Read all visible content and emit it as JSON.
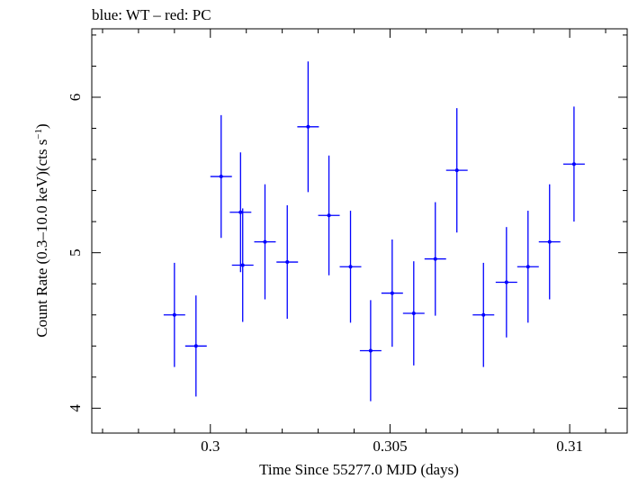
{
  "chart_data": {
    "type": "scatter",
    "title": "blue: WT – red: PC",
    "xlabel": "Time Since 55277.0 MJD (days)",
    "ylabel_main": "Count Rate (0.3–10.0 keV)(cts s",
    "ylabel_sup": "−1",
    "ylabel_close": ")",
    "xlim": [
      0.2967,
      0.3116
    ],
    "ylim": [
      3.84,
      6.44
    ],
    "xticks": [
      {
        "value": 0.3,
        "label": "0.3"
      },
      {
        "value": 0.305,
        "label": "0.305"
      },
      {
        "value": 0.31,
        "label": "0.31"
      }
    ],
    "yticks": [
      {
        "value": 4,
        "label": "4"
      },
      {
        "value": 5,
        "label": "5"
      },
      {
        "value": 6,
        "label": "6"
      }
    ],
    "grid": false,
    "legend": "none",
    "series": [
      {
        "color": "#0000ff",
        "points": [
          {
            "x": 0.30084,
            "xerr": 0.0003,
            "y": 5.26,
            "yerr": 0.385
          },
          {
            "x": 0.299,
            "xerr": 0.0003,
            "y": 4.6,
            "yerr": 0.335
          },
          {
            "x": 0.2996,
            "xerr": 0.0003,
            "y": 4.4,
            "yerr": 0.325
          },
          {
            "x": 0.3003,
            "xerr": 0.0003,
            "y": 5.49,
            "yerr": 0.395
          },
          {
            "x": 0.3009,
            "xerr": 0.0003,
            "y": 4.92,
            "yerr": 0.365
          },
          {
            "x": 0.30152,
            "xerr": 0.0003,
            "y": 5.07,
            "yerr": 0.37
          },
          {
            "x": 0.30214,
            "xerr": 0.0003,
            "y": 4.94,
            "yerr": 0.365
          },
          {
            "x": 0.30272,
            "xerr": 0.0003,
            "y": 5.81,
            "yerr": 0.42
          },
          {
            "x": 0.3033,
            "xerr": 0.0003,
            "y": 5.24,
            "yerr": 0.385
          },
          {
            "x": 0.3039,
            "xerr": 0.0003,
            "y": 4.91,
            "yerr": 0.36
          },
          {
            "x": 0.30446,
            "xerr": 0.0003,
            "y": 4.37,
            "yerr": 0.325
          },
          {
            "x": 0.30506,
            "xerr": 0.0003,
            "y": 4.74,
            "yerr": 0.345
          },
          {
            "x": 0.30566,
            "xerr": 0.0003,
            "y": 4.61,
            "yerr": 0.335
          },
          {
            "x": 0.30626,
            "xerr": 0.0003,
            "y": 4.96,
            "yerr": 0.365
          },
          {
            "x": 0.30686,
            "xerr": 0.0003,
            "y": 5.53,
            "yerr": 0.4
          },
          {
            "x": 0.3076,
            "xerr": 0.0003,
            "y": 4.6,
            "yerr": 0.335
          },
          {
            "x": 0.30824,
            "xerr": 0.0003,
            "y": 4.81,
            "yerr": 0.355
          },
          {
            "x": 0.30884,
            "xerr": 0.0003,
            "y": 4.91,
            "yerr": 0.36
          },
          {
            "x": 0.30944,
            "xerr": 0.0003,
            "y": 5.07,
            "yerr": 0.37
          },
          {
            "x": 0.31012,
            "xerr": 0.0003,
            "y": 5.57,
            "yerr": 0.37
          }
        ]
      }
    ]
  }
}
